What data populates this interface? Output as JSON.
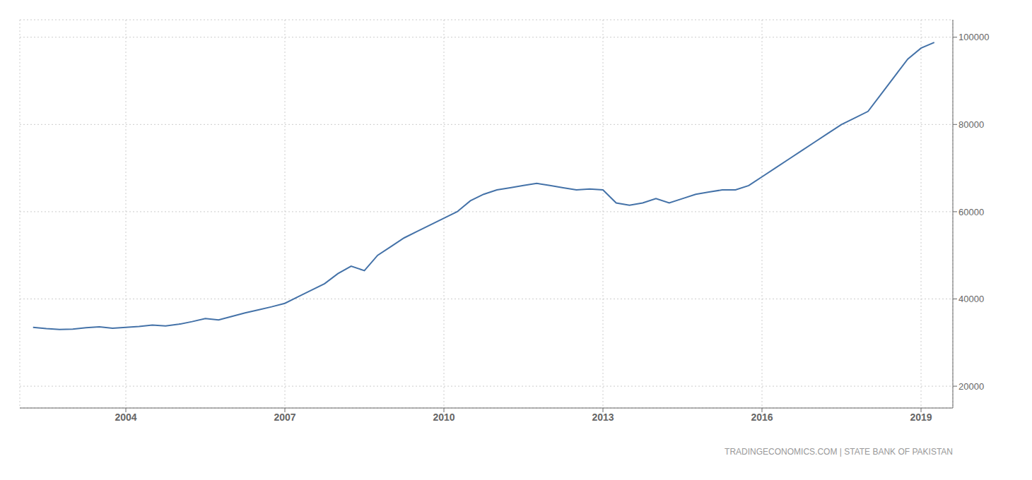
{
  "chart_data": {
    "type": "line",
    "annotations": [
      "TRADINGECONOMICS.COM | STATE BANK OF PAKISTAN"
    ],
    "color": "#4472a8",
    "grid": true,
    "xlim": [
      2002.0,
      2019.6
    ],
    "ylim": [
      15000,
      104000
    ],
    "xticks": [
      2004,
      2007,
      2010,
      2013,
      2016,
      2019
    ],
    "yticks": [
      20000,
      40000,
      60000,
      80000,
      100000
    ],
    "x": [
      2002.25,
      2002.5,
      2002.75,
      2003.0,
      2003.25,
      2003.5,
      2003.75,
      2004.0,
      2004.25,
      2004.5,
      2004.75,
      2005.0,
      2005.25,
      2005.5,
      2005.75,
      2006.0,
      2006.25,
      2006.5,
      2006.75,
      2007.0,
      2007.25,
      2007.5,
      2007.75,
      2008.0,
      2008.25,
      2008.5,
      2008.75,
      2009.0,
      2009.25,
      2009.5,
      2009.75,
      2010.0,
      2010.25,
      2010.5,
      2010.75,
      2011.0,
      2011.25,
      2011.5,
      2011.75,
      2012.0,
      2012.25,
      2012.5,
      2012.75,
      2013.0,
      2013.25,
      2013.5,
      2013.75,
      2014.0,
      2014.25,
      2014.5,
      2014.75,
      2015.0,
      2015.25,
      2015.5,
      2015.75,
      2016.0,
      2016.25,
      2016.5,
      2016.75,
      2017.0,
      2017.25,
      2017.5,
      2017.75,
      2018.0,
      2018.25,
      2018.5,
      2018.75,
      2019.0,
      2019.25
    ],
    "values": [
      33500,
      33200,
      33000,
      33100,
      33400,
      33600,
      33300,
      33500,
      33700,
      34000,
      33800,
      34200,
      34800,
      35500,
      35200,
      36000,
      36800,
      37500,
      38200,
      39000,
      40500,
      42000,
      43500,
      45800,
      47500,
      46500,
      50000,
      52000,
      54000,
      55500,
      57000,
      58500,
      60000,
      62500,
      64000,
      65000,
      65500,
      66000,
      66500,
      66000,
      65500,
      65000,
      65200,
      65000,
      62000,
      61500,
      62000,
      63000,
      62000,
      63000,
      64000,
      64500,
      65000,
      65000,
      66000,
      68000,
      70000,
      72000,
      74000,
      76000,
      78000,
      80000,
      81500,
      83000,
      87000,
      91000,
      95000,
      97500,
      98800
    ]
  }
}
